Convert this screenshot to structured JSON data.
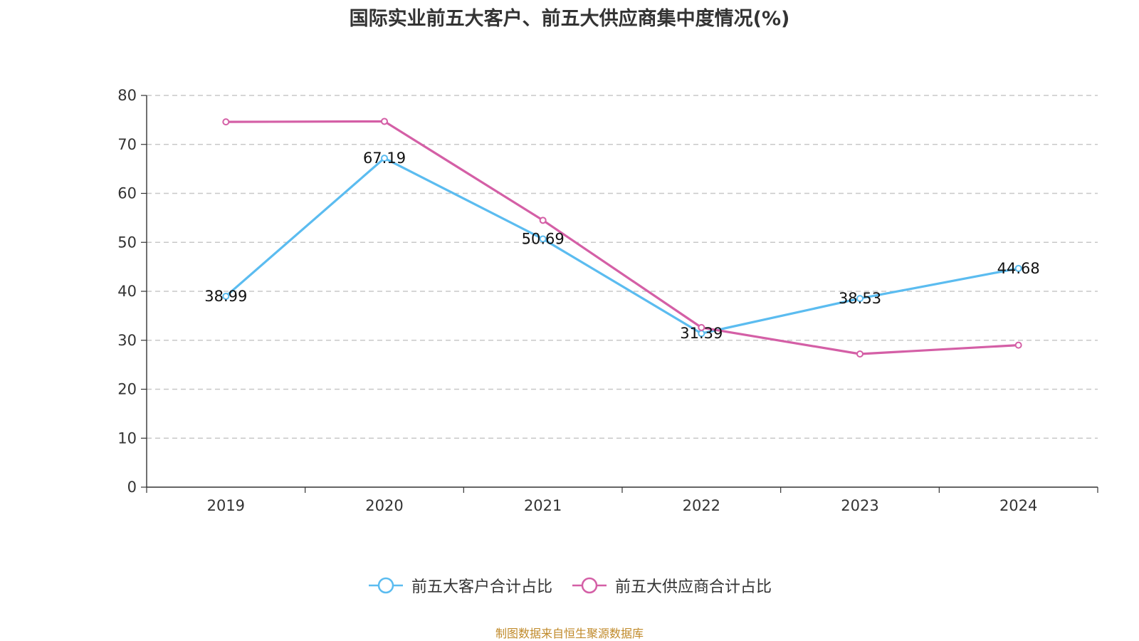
{
  "chart_data": {
    "type": "line",
    "title": "国际实业前五大客户、前五大供应商集中度情况(%)",
    "categories": [
      "2019",
      "2020",
      "2021",
      "2022",
      "2023",
      "2024"
    ],
    "ylim": [
      0,
      80
    ],
    "yticks": [
      0,
      10,
      20,
      30,
      40,
      50,
      60,
      70,
      80
    ],
    "grid": true,
    "legend_position": "bottom",
    "series": [
      {
        "name": "前五大客户合计占比",
        "color": "#5bbcf0",
        "values": [
          38.99,
          67.19,
          50.69,
          31.39,
          38.53,
          44.68
        ],
        "labels": [
          "38.99",
          "67.19",
          "50.69",
          "31.39",
          "38.53",
          "44.68"
        ]
      },
      {
        "name": "前五大供应商合计占比",
        "color": "#d45fa6",
        "values": [
          74.6,
          74.7,
          54.5,
          32.6,
          27.2,
          29.0
        ]
      }
    ]
  },
  "source_text": "制图数据来自恒生聚源数据库"
}
